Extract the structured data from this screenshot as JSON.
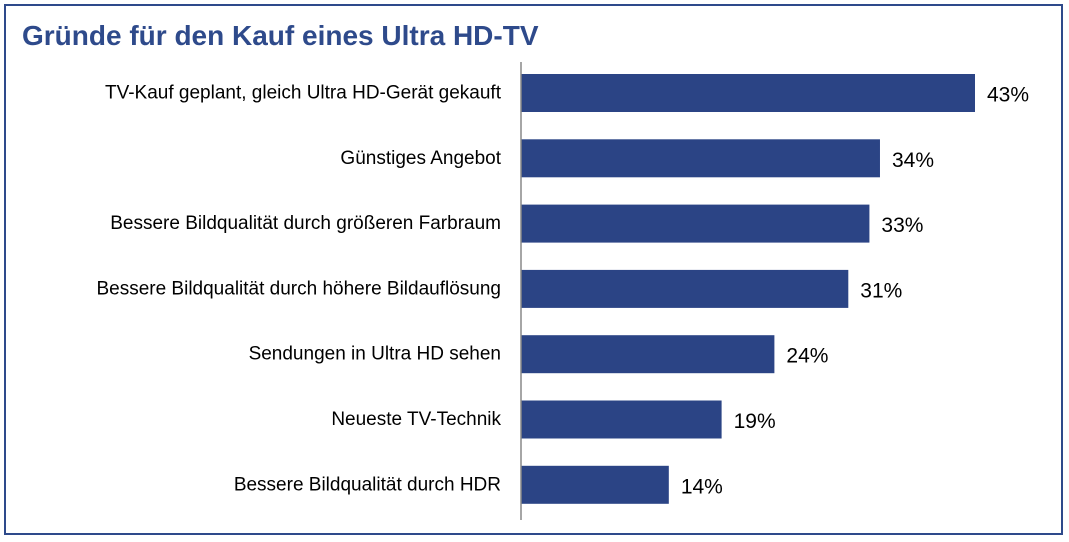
{
  "chart_data": {
    "type": "bar",
    "orientation": "horizontal",
    "title": "Gründe für den Kauf eines Ultra HD-TV",
    "categories": [
      "TV-Kauf geplant, gleich Ultra HD-Gerät gekauft",
      "Günstiges Angebot",
      "Bessere Bildqualität durch größeren Farbraum",
      "Bessere Bildqualität durch höhere Bildauflösung",
      "Sendungen in Ultra HD sehen",
      "Neueste TV-Technik",
      "Bessere Bildqualität durch HDR"
    ],
    "values": [
      43,
      34,
      33,
      31,
      24,
      19,
      14
    ],
    "value_labels": [
      "43%",
      "34%",
      "33%",
      "31%",
      "24%",
      "19%",
      "14%"
    ],
    "unit": "%",
    "xlim": [
      0,
      43
    ],
    "grid": false,
    "legend": "none",
    "bar_color": "#2b4485",
    "axis_color": "#888888",
    "title_color": "#2e4a8b",
    "frame_color": "#2e4a8b"
  }
}
